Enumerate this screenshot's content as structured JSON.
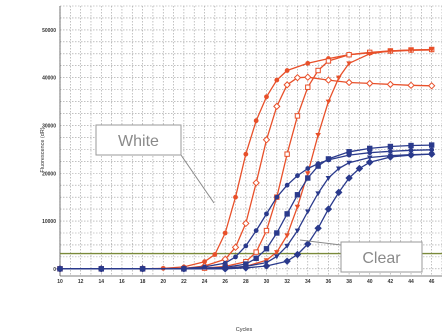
{
  "chart_data": {
    "type": "line",
    "xlabel": "Cycles",
    "ylabel": "Fluorescence (dR)",
    "xlim": [
      10,
      47
    ],
    "ylim": [
      -1500,
      55000
    ],
    "x_ticks": [
      10,
      12,
      14,
      16,
      18,
      20,
      22,
      24,
      26,
      28,
      30,
      32,
      34,
      36,
      38,
      40,
      42,
      44,
      46
    ],
    "y_ticks": [
      0,
      10000,
      20000,
      30000,
      40000,
      50000
    ],
    "grid": true,
    "threshold": 3200,
    "colors": {
      "red": "#e8502a",
      "blue": "#2a3a8c",
      "threshold": "#7a8a3a",
      "grid": "#9a9a9a"
    },
    "series": [
      {
        "color": "#e8502a",
        "marker": "circle",
        "values": [
          [
            10,
            0
          ],
          [
            14,
            0
          ],
          [
            18,
            0
          ],
          [
            20,
            100
          ],
          [
            22,
            400
          ],
          [
            24,
            1500
          ],
          [
            25,
            3000
          ],
          [
            26,
            7500
          ],
          [
            27,
            15000
          ],
          [
            28,
            24000
          ],
          [
            29,
            31000
          ],
          [
            30,
            36000
          ],
          [
            31,
            39500
          ],
          [
            32,
            41500
          ],
          [
            34,
            43000
          ],
          [
            36,
            44000
          ],
          [
            38,
            44800
          ],
          [
            40,
            45200
          ],
          [
            42,
            45500
          ],
          [
            44,
            45700
          ],
          [
            46,
            45800
          ]
        ]
      },
      {
        "color": "#e8502a",
        "marker": "diamond",
        "values": [
          [
            10,
            0
          ],
          [
            14,
            0
          ],
          [
            18,
            0
          ],
          [
            22,
            100
          ],
          [
            24,
            600
          ],
          [
            26,
            2000
          ],
          [
            27,
            4500
          ],
          [
            28,
            9500
          ],
          [
            29,
            18000
          ],
          [
            30,
            27000
          ],
          [
            31,
            34000
          ],
          [
            32,
            38500
          ],
          [
            33,
            40000
          ],
          [
            34,
            40100
          ],
          [
            36,
            39500
          ],
          [
            38,
            39000
          ],
          [
            40,
            38800
          ],
          [
            42,
            38600
          ],
          [
            44,
            38400
          ],
          [
            46,
            38300
          ]
        ]
      },
      {
        "color": "#e8502a",
        "marker": "square",
        "values": [
          [
            10,
            0
          ],
          [
            14,
            0
          ],
          [
            18,
            0
          ],
          [
            22,
            0
          ],
          [
            24,
            150
          ],
          [
            26,
            500
          ],
          [
            28,
            1500
          ],
          [
            29,
            3500
          ],
          [
            30,
            8000
          ],
          [
            31,
            15000
          ],
          [
            32,
            24000
          ],
          [
            33,
            32000
          ],
          [
            34,
            38000
          ],
          [
            35,
            41500
          ],
          [
            36,
            43500
          ],
          [
            38,
            44800
          ],
          [
            40,
            45300
          ],
          [
            42,
            45600
          ],
          [
            44,
            45800
          ],
          [
            46,
            45900
          ]
        ]
      },
      {
        "color": "#e8502a",
        "marker": "triangle-down",
        "values": [
          [
            10,
            0
          ],
          [
            14,
            0
          ],
          [
            18,
            0
          ],
          [
            22,
            0
          ],
          [
            26,
            150
          ],
          [
            28,
            500
          ],
          [
            30,
            1800
          ],
          [
            31,
            3500
          ],
          [
            32,
            7000
          ],
          [
            33,
            13000
          ],
          [
            34,
            20000
          ],
          [
            35,
            28000
          ],
          [
            36,
            35000
          ],
          [
            37,
            40000
          ],
          [
            38,
            43000
          ],
          [
            40,
            45000
          ],
          [
            42,
            45600
          ],
          [
            44,
            45800
          ],
          [
            46,
            45900
          ]
        ]
      },
      {
        "color": "#2a3a8c",
        "marker": "circle",
        "values": [
          [
            10,
            0
          ],
          [
            14,
            0
          ],
          [
            18,
            0
          ],
          [
            22,
            100
          ],
          [
            24,
            400
          ],
          [
            26,
            1200
          ],
          [
            27,
            2500
          ],
          [
            28,
            4800
          ],
          [
            29,
            8000
          ],
          [
            30,
            11500
          ],
          [
            31,
            15000
          ],
          [
            32,
            17500
          ],
          [
            33,
            19500
          ],
          [
            34,
            21000
          ],
          [
            35,
            22000
          ],
          [
            36,
            22800
          ],
          [
            38,
            23800
          ],
          [
            40,
            24300
          ],
          [
            42,
            24600
          ],
          [
            44,
            24800
          ],
          [
            46,
            24900
          ]
        ]
      },
      {
        "color": "#2a3a8c",
        "marker": "square",
        "values": [
          [
            10,
            0
          ],
          [
            14,
            0
          ],
          [
            18,
            0
          ],
          [
            22,
            0
          ],
          [
            26,
            300
          ],
          [
            28,
            1000
          ],
          [
            29,
            2200
          ],
          [
            30,
            4200
          ],
          [
            31,
            7500
          ],
          [
            32,
            11500
          ],
          [
            33,
            15500
          ],
          [
            34,
            19000
          ],
          [
            35,
            21500
          ],
          [
            36,
            23000
          ],
          [
            38,
            24500
          ],
          [
            40,
            25200
          ],
          [
            42,
            25600
          ],
          [
            44,
            25800
          ],
          [
            46,
            25900
          ]
        ]
      },
      {
        "color": "#2a3a8c",
        "marker": "triangle-down",
        "values": [
          [
            10,
            0
          ],
          [
            14,
            0
          ],
          [
            18,
            0
          ],
          [
            22,
            0
          ],
          [
            26,
            100
          ],
          [
            28,
            500
          ],
          [
            30,
            1300
          ],
          [
            31,
            2600
          ],
          [
            32,
            4800
          ],
          [
            33,
            8000
          ],
          [
            34,
            12000
          ],
          [
            35,
            15800
          ],
          [
            36,
            19000
          ],
          [
            37,
            21000
          ],
          [
            38,
            22200
          ],
          [
            40,
            23300
          ],
          [
            42,
            23700
          ],
          [
            44,
            23900
          ],
          [
            46,
            24000
          ]
        ]
      },
      {
        "color": "#2a3a8c",
        "marker": "diamond",
        "values": [
          [
            10,
            0
          ],
          [
            14,
            0
          ],
          [
            18,
            0
          ],
          [
            22,
            0
          ],
          [
            26,
            0
          ],
          [
            28,
            200
          ],
          [
            30,
            600
          ],
          [
            32,
            1600
          ],
          [
            33,
            3000
          ],
          [
            34,
            5200
          ],
          [
            35,
            8500
          ],
          [
            36,
            12500
          ],
          [
            37,
            16000
          ],
          [
            38,
            19000
          ],
          [
            39,
            21000
          ],
          [
            40,
            22300
          ],
          [
            42,
            23400
          ],
          [
            44,
            23800
          ],
          [
            46,
            24000
          ]
        ]
      }
    ],
    "annotations": [
      {
        "text": "White"
      },
      {
        "text": "Clear"
      }
    ]
  }
}
